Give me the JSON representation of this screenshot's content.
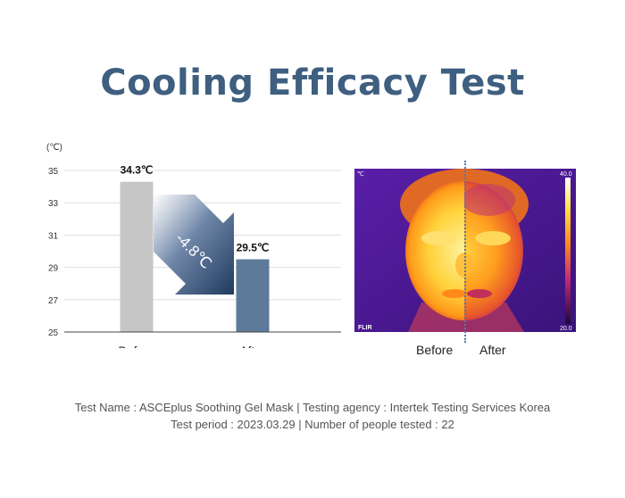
{
  "title": "Cooling Efficacy Test",
  "chart_data": {
    "type": "bar",
    "unit_label": "(℃)",
    "categories": [
      "Before",
      "After"
    ],
    "values": [
      34.3,
      29.5
    ],
    "value_labels": [
      "34.3℃",
      "29.5℃"
    ],
    "ylim": [
      25,
      35
    ],
    "yticks": [
      25,
      27,
      29,
      31,
      33,
      35
    ],
    "grid": true,
    "annotation": "-4.8℃",
    "colors": {
      "before": "#c6c6c6",
      "after": "#5d7a9a",
      "arrow": "#1f3a5e"
    }
  },
  "thermal_image": {
    "unit": "℃",
    "scale_max": "40.0",
    "scale_min": "20.0",
    "brand": "FLIR",
    "labels": {
      "before": "Before",
      "after": "After"
    }
  },
  "footer": {
    "line1": "Test Name : ASCEplus Soothing Gel Mask  |  Testing agency : Intertek Testing Services Korea",
    "line2": "Test period : 2023.03.29  |  Number of people tested : 22"
  }
}
